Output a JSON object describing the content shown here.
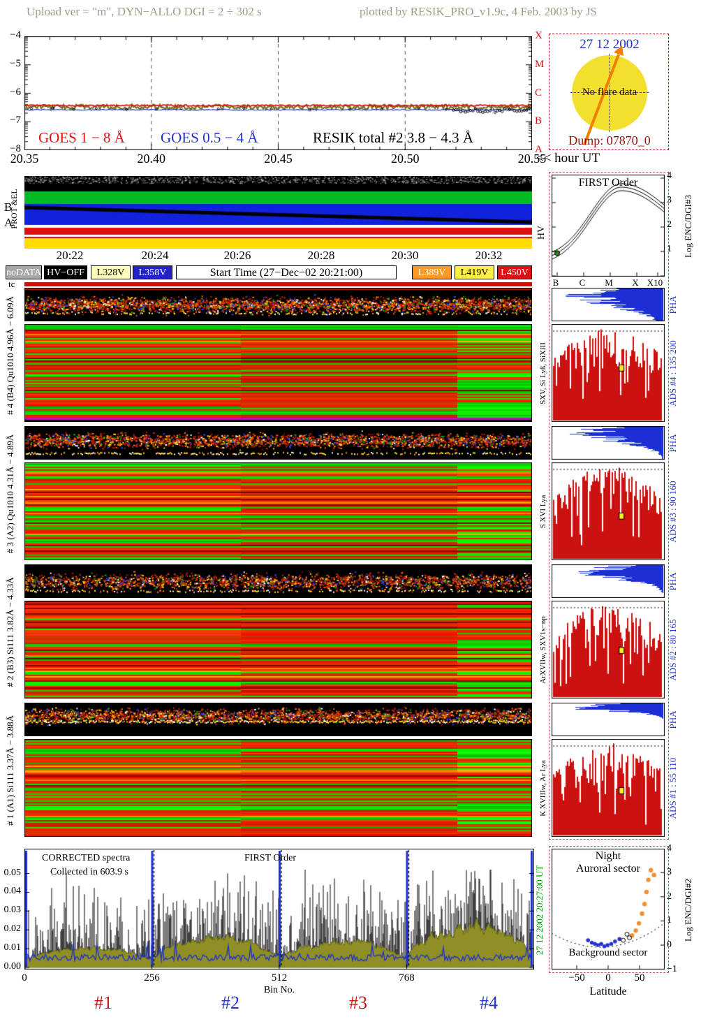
{
  "header": {
    "left": "Upload ver = \"m\", DYN−ALLO DGI =   2 ÷ 302 s",
    "right": "plotted by RESIK_PRO_v1.9c, 4 Feb. 2003 by JS"
  },
  "goes": {
    "yticks": [
      "−4",
      "−5",
      "−6",
      "−7",
      "−8"
    ],
    "class_letters": [
      "X",
      "M",
      "C",
      "B",
      "A"
    ],
    "xticks": [
      "20.35",
      "20.40",
      "20.45",
      "20.50",
      "20.55"
    ],
    "hour_label": "<< hour UT",
    "legend_goes18": "GOES 1 − 8 Å",
    "legend_goes054": "GOES 0.5 − 4 Å",
    "legend_resik": "RESIK total #2  3.8 − 4.3 Å",
    "colors": {
      "goes18": "#dd1111",
      "goes054": "#2233cc",
      "resik": "#75751a"
    }
  },
  "flare_panel": {
    "date": "27 12 2002",
    "message": "No flare data",
    "dump": "Dump: 07870_0"
  },
  "ba": {
    "prot_label": "PROT &EL",
    "row_labels": [
      "B",
      "A"
    ],
    "hv_label": "HV",
    "times": [
      "20:22",
      "20:24",
      "20:26",
      "20:28",
      "20:30",
      "20:32"
    ]
  },
  "legend_row": [
    {
      "label": "noDATA",
      "bg": "#a8a8a8",
      "fg": "#ffffff"
    },
    {
      "label": "HV−OFF",
      "bg": "#000000",
      "fg": "#ffffff"
    },
    {
      "label": "L328V",
      "bg": "#ffffbb",
      "fg": "#000000"
    },
    {
      "label": "L358V",
      "bg": "#2222cc",
      "fg": "#ffffff"
    },
    {
      "label": "Start Time (27−Dec−02 20:21:00)",
      "bg": "#ffffff",
      "fg": "#000000"
    },
    {
      "label": "L389V",
      "bg": "#ff9922",
      "fg": "#ffffff"
    },
    {
      "label": "L419V",
      "bg": "#ffee44",
      "fg": "#000000"
    },
    {
      "label": "L450V",
      "bg": "#dd1111",
      "fg": "#ffffff"
    }
  ],
  "tc_label": "tc",
  "channels": [
    {
      "left_label": "# 4 (B4) Qu1010 4.96Å − 6.09Å",
      "line_label": "SXV, Si Lyß, SiXIII",
      "pha_label": "PHA",
      "ads_label": "ADS #4 :  135 200"
    },
    {
      "left_label": "# 3 (A2) Qu1010 4.31Å − 4.89Å",
      "line_label": "S XVI Lya",
      "pha_label": "PHA",
      "ads_label": "ADS #3 :  90 160"
    },
    {
      "left_label": "# 2 (B3) Si111 3.82Å − 4.33Å",
      "line_label": "ArXVIIw, SXV1s−np",
      "pha_label": "PHA",
      "ads_label": "ADS #2 :  80 165"
    },
    {
      "left_label": "# 1 (A1) Si111 3.37Å − 3.88Å",
      "line_label": "K XVIIIw, Ar Lya",
      "pha_label": "PHA",
      "ads_label": "ADS #1 :  55 110"
    }
  ],
  "first_order": {
    "title": "FIRST Order",
    "xletters": [
      "B",
      "C",
      "M",
      "X",
      "X10"
    ],
    "right_ticks": [
      "4",
      "3",
      "2",
      "1"
    ],
    "right_label": "Log ENC/DGI#3"
  },
  "bottom": {
    "corrected": "CORRECTED spectra",
    "collected": "Collected in   603.9 s",
    "first_order": "FIRST Order",
    "yticks": [
      "0.05",
      "0.04",
      "0.03",
      "0.02",
      "0.01",
      "0.00"
    ],
    "ytick_values": [
      0.05,
      0.04,
      0.03,
      0.02,
      0.01,
      0.0
    ],
    "xticks": [
      "0",
      "256",
      "512",
      "768"
    ],
    "xlabel": "Bin No.",
    "channel_tags": [
      {
        "label": "#1",
        "color": "#cc1111"
      },
      {
        "label": "#2",
        "color": "#2233cc"
      },
      {
        "label": "#3",
        "color": "#cc1111"
      },
      {
        "label": "#4",
        "color": "#2233cc"
      }
    ],
    "side_label": "27 12 2002      20:27:00 UT"
  },
  "scatter_panel": {
    "night": "Night",
    "auroral": "Auroral sector",
    "background": "Background sector",
    "xticks": [
      "−50",
      "0",
      "50"
    ],
    "xtick_values": [
      -50,
      0,
      50
    ],
    "xlabel": "Latitude",
    "right_ticks": [
      "4",
      "3",
      "2",
      "1",
      "0",
      "−1"
    ],
    "right_tick_values": [
      4,
      3,
      2,
      1,
      0,
      -1
    ],
    "right_label": "Log ENC/DGI#2"
  },
  "chart_data": [
    {
      "type": "line",
      "title": "GOES and RESIK total light curves",
      "x_range_hours_ut": [
        20.35,
        20.55
      ],
      "x_ticks": [
        20.35,
        20.4,
        20.45,
        20.5,
        20.55
      ],
      "y_log_flux_range": [
        -8,
        -4
      ],
      "goes_class_axis": [
        "A",
        "B",
        "C",
        "M",
        "X"
      ],
      "series": [
        {
          "name": "GOES 1 − 8 Å",
          "color": "#dd1111",
          "approx_log_flux": -6.43,
          "shape": "flat"
        },
        {
          "name": "GOES 0.5 − 4 Å",
          "color": "#2233cc",
          "approx_log_flux": -6.58,
          "shape": "flat"
        },
        {
          "name": "RESIK total #2 3.8−4.3 Å",
          "color": "#75751a",
          "approx_log_flux": -6.48,
          "shape": "flat noisy; black circle points clustered near 20.53–20.55"
        }
      ],
      "note": "no flare during interval"
    },
    {
      "type": "heatmap",
      "title": "RESIK wavelength–time spectrograms with PHA strips, start 27-Dec-02 20:21:00",
      "time_ticks": [
        "20:22",
        "20:24",
        "20:26",
        "20:28",
        "20:30",
        "20:32"
      ],
      "panels": [
        {
          "channel": "# 4 (B4) Qu1010 4.96Å − 6.09Å",
          "lines": "SXV, Si Lyß, SiXIII",
          "ads_window": [
            135,
            200
          ]
        },
        {
          "channel": "# 3 (A2) Qu1010 4.31Å − 4.89Å",
          "lines": "S XVI Lya",
          "ads_window": [
            90,
            160
          ]
        },
        {
          "channel": "# 2 (B3) Si111 3.82Å − 4.33Å",
          "lines": "ArXVIIw, SXV1s−np",
          "ads_window": [
            80,
            165
          ]
        },
        {
          "channel": "# 1 (A1) Si111 3.37Å − 3.88Å",
          "lines": "K XVIIIw, Ar Lya",
          "ads_window": [
            55,
            110
          ]
        }
      ],
      "note": "red/green intensity striping; DGI boundaries at ~43% and ~85% of the time axis"
    },
    {
      "type": "area",
      "title": "CORRECTED spectra, collected in 603.9 s, FIRST Order",
      "xlabel": "Bin No.",
      "x_ticks": [
        0,
        256,
        512,
        768
      ],
      "xlim": [
        0,
        1023
      ],
      "ylim": [
        0,
        0.057
      ],
      "y_ticks": [
        0,
        0.01,
        0.02,
        0.03,
        0.04,
        0.05
      ],
      "sections": [
        {
          "label": "#1",
          "bins": [
            0,
            256
          ],
          "approx_peak": 0.02
        },
        {
          "label": "#2",
          "bins": [
            256,
            512
          ],
          "approx_peak": 0.035
        },
        {
          "label": "#3",
          "bins": [
            512,
            768
          ],
          "approx_peak": 0.03
        },
        {
          "label": "#4",
          "bins": [
            768,
            1023
          ],
          "approx_peak": 0.05
        }
      ],
      "series_styles": {
        "counts": "black spikes",
        "smoothed": "olive filled area",
        "background": "blue trace with full-height blue separators at section boundaries"
      }
    },
    {
      "type": "scatter",
      "title": "Night — Auroral sector / Background sector",
      "xlabel": "Latitude",
      "xlim": [
        -90,
        90
      ],
      "x_ticks": [
        -50,
        0,
        50
      ],
      "ylabel_right": "Log ENC/DGI#2",
      "ylim": [
        -1,
        4
      ],
      "groups": [
        {
          "name": "background-sector-points",
          "color": "#2233cc",
          "points": [
            [
              -32,
              0.2
            ],
            [
              -26,
              0.1
            ],
            [
              -21,
              0.05
            ],
            [
              -16,
              0
            ],
            [
              -11,
              0.05
            ],
            [
              -6,
              -0.05
            ],
            [
              -1,
              0
            ],
            [
              5,
              0.05
            ],
            [
              11,
              0.15
            ],
            [
              18,
              0.25
            ]
          ]
        },
        {
          "name": "auroral-sector-points",
          "color": "#f09030",
          "points": [
            [
              38,
              0.4
            ],
            [
              44,
              0.6
            ],
            [
              49,
              0.9
            ],
            [
              54,
              1.3
            ],
            [
              58,
              1.7
            ],
            [
              61,
              2.2
            ],
            [
              64,
              2.7
            ],
            [
              68,
              3.1
            ],
            [
              73,
              2.9
            ]
          ]
        },
        {
          "name": "open-circle-points",
          "color": "#000000",
          "points": [
            [
              24,
              0.2
            ],
            [
              30,
              0.45
            ],
            [
              34,
              0.3
            ]
          ]
        }
      ],
      "dotted_trend": "shallow parabola, minimum near latitude -10"
    },
    {
      "type": "line",
      "title": "FIRST Order response",
      "x_letters": [
        "B",
        "C",
        "M",
        "X",
        "X10"
      ],
      "ylabel_right": "Log ENC/DGI#3",
      "y_ticks": [
        1,
        2,
        3,
        4
      ],
      "shape": "triple nested curve rising from B to a peak near X, then declining; green point at left end"
    }
  ]
}
